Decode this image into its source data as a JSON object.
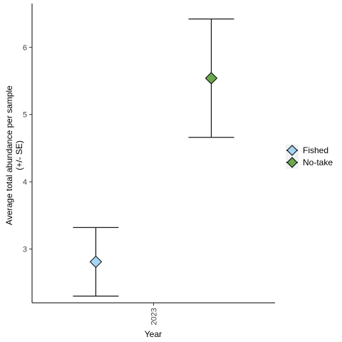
{
  "chart_data": {
    "type": "scatter",
    "xlabel": "Year",
    "ylabel_line1": "Average total abundance per sample",
    "ylabel_line2": "(+/- SE)",
    "categories": [
      "2023"
    ],
    "yticks": [
      "3",
      "4",
      "5",
      "6"
    ],
    "ylim": [
      2.2,
      6.65
    ],
    "grid": false,
    "legend_position": "right",
    "series": [
      {
        "name": "Fished",
        "color": "#a6d5f2",
        "value": 2.81,
        "lower": 2.3,
        "upper": 3.32,
        "shape": "diamond"
      },
      {
        "name": "No-take",
        "color": "#6aa84f",
        "value": 5.54,
        "lower": 4.66,
        "upper": 6.42,
        "shape": "diamond"
      }
    ]
  }
}
